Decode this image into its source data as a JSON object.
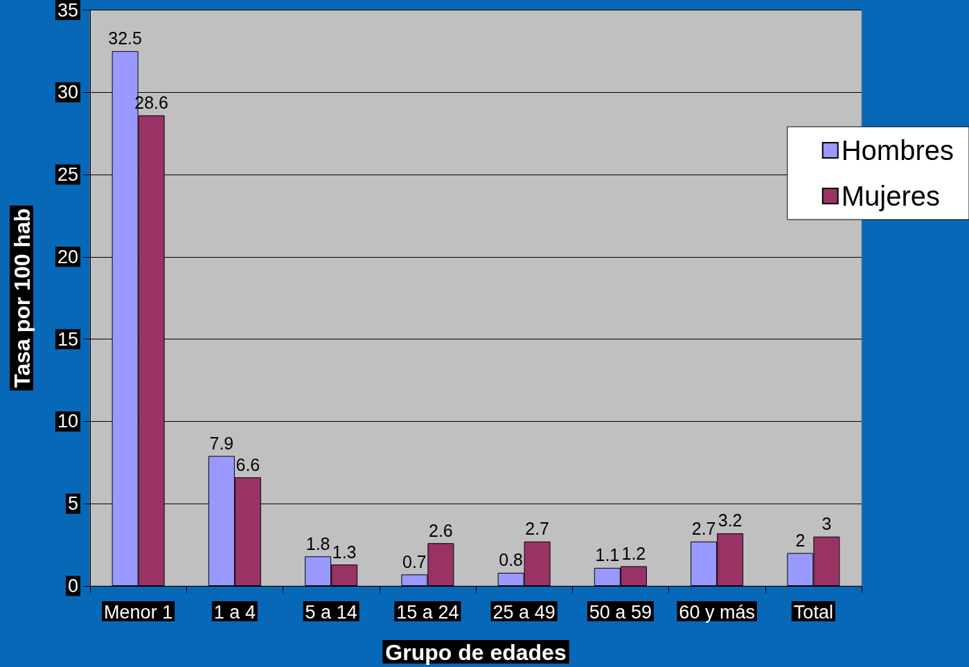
{
  "chart_data": {
    "type": "bar",
    "xlabel": "Grupo de edades",
    "ylabel": "Tasa por 100 hab",
    "categories": [
      "Menor 1",
      "1 a 4",
      "5 a 14",
      "15 a 24",
      "25 a 49",
      "50 a 59",
      "60 y más",
      "Total"
    ],
    "series": [
      {
        "name": "Hombres",
        "color": "#9999ff",
        "values": [
          32.5,
          7.9,
          1.8,
          0.7,
          0.8,
          1.1,
          2.7,
          2
        ]
      },
      {
        "name": "Mujeres",
        "color": "#993366",
        "values": [
          28.6,
          6.6,
          1.3,
          2.6,
          2.7,
          1.2,
          3.2,
          3
        ]
      }
    ],
    "ylim": [
      0,
      35
    ],
    "yticks": [
      0,
      5,
      10,
      15,
      20,
      25,
      30,
      35
    ],
    "grid": "y",
    "legend": "right",
    "data_labels": true
  }
}
